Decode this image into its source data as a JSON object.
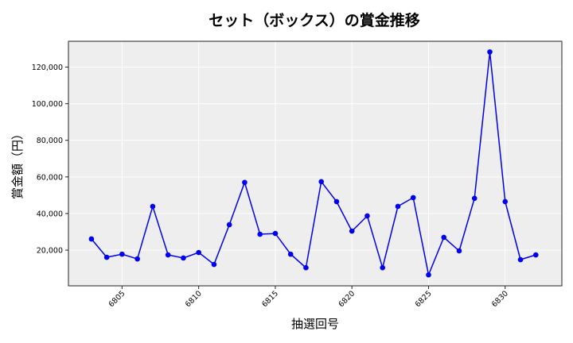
{
  "chart_data": {
    "type": "line",
    "title": "セット（ボックス）の賞金推移",
    "xlabel": "抽選回号",
    "ylabel": "賞金額（円）",
    "x": [
      6803,
      6804,
      6805,
      6806,
      6807,
      6808,
      6809,
      6810,
      6811,
      6812,
      6813,
      6814,
      6815,
      6816,
      6817,
      6818,
      6819,
      6820,
      6821,
      6822,
      6823,
      6824,
      6825,
      6826,
      6827,
      6828,
      6829,
      6830,
      6831,
      6832
    ],
    "series": [
      {
        "name": "賞金額",
        "color": "#0000ee",
        "marker": "circle",
        "values": [
          26100,
          16100,
          17800,
          15200,
          43900,
          17400,
          15700,
          18700,
          12200,
          33900,
          57000,
          28700,
          29100,
          17800,
          10400,
          57400,
          46500,
          30400,
          38700,
          10400,
          43900,
          48700,
          6500,
          27000,
          19600,
          48300,
          128300,
          46500,
          14800,
          17400
        ]
      }
    ],
    "xticks": [
      6805,
      6810,
      6815,
      6820,
      6825,
      6830
    ],
    "yticks": [
      20000,
      40000,
      60000,
      80000,
      100000,
      120000
    ],
    "ytick_labels": [
      "20,000",
      "40,000",
      "60,000",
      "80,000",
      "100,000",
      "120,000"
    ],
    "xlim": [
      6801.5,
      6833.7
    ],
    "ylim": [
      500,
      134100
    ],
    "grid": true,
    "background": "#eeeeee",
    "legend": null
  }
}
